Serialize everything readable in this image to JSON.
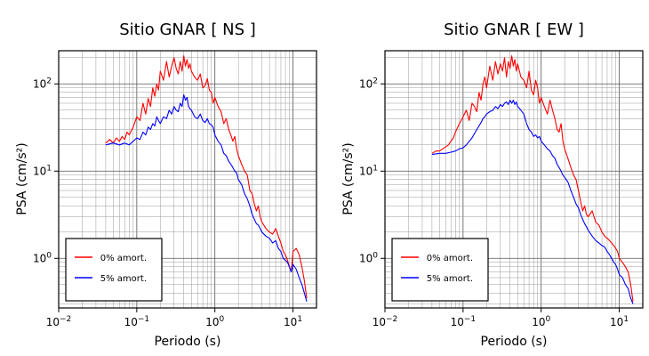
{
  "chart_data": [
    {
      "type": "line",
      "title": "Sitio GNAR [ NS ]",
      "xlabel": "Periodo (s)",
      "ylabel": "PSA (cm/s²)",
      "xscale": "log",
      "yscale": "log",
      "xlim": [
        0.01,
        20
      ],
      "ylim": [
        0.27,
        240
      ],
      "grid": true,
      "legend_placement": "bottom-left",
      "xticks": [
        {
          "value": 0.01,
          "base": "10",
          "exp": "−2"
        },
        {
          "value": 0.1,
          "base": "10",
          "exp": "−1"
        },
        {
          "value": 1,
          "base": "10",
          "exp": "0"
        },
        {
          "value": 10,
          "base": "10",
          "exp": "1"
        }
      ],
      "yticks": [
        {
          "value": 1,
          "base": "10",
          "exp": "0"
        },
        {
          "value": 10,
          "base": "10",
          "exp": "1"
        },
        {
          "value": 100,
          "base": "10",
          "exp": "2"
        }
      ],
      "series": [
        {
          "name": "0% amort.",
          "color": "#ff0000",
          "x": [
            0.04,
            0.045,
            0.05,
            0.055,
            0.06,
            0.065,
            0.07,
            0.075,
            0.08,
            0.09,
            0.1,
            0.11,
            0.12,
            0.13,
            0.14,
            0.15,
            0.16,
            0.17,
            0.18,
            0.19,
            0.2,
            0.22,
            0.24,
            0.26,
            0.28,
            0.3,
            0.32,
            0.34,
            0.36,
            0.38,
            0.4,
            0.42,
            0.44,
            0.46,
            0.48,
            0.5,
            0.55,
            0.6,
            0.65,
            0.7,
            0.75,
            0.8,
            0.85,
            0.9,
            0.95,
            1.0,
            1.1,
            1.2,
            1.3,
            1.4,
            1.5,
            1.6,
            1.7,
            1.8,
            1.9,
            2.0,
            2.2,
            2.4,
            2.6,
            2.8,
            3.0,
            3.2,
            3.4,
            3.6,
            3.8,
            4.0,
            4.5,
            5.0,
            5.5,
            6.0,
            6.5,
            7.0,
            7.5,
            8.0,
            8.5,
            9.0,
            9.5,
            10,
            11,
            12,
            13,
            14,
            15
          ],
          "y": [
            21,
            23,
            21,
            24,
            22,
            25,
            23,
            28,
            26,
            32,
            42,
            38,
            60,
            45,
            68,
            55,
            90,
            72,
            100,
            85,
            140,
            110,
            180,
            120,
            160,
            200,
            150,
            130,
            180,
            140,
            210,
            160,
            190,
            150,
            170,
            140,
            120,
            110,
            130,
            90,
            95,
            115,
            85,
            80,
            60,
            70,
            55,
            48,
            35,
            40,
            30,
            26,
            22,
            25,
            18,
            15,
            12,
            10,
            9,
            6,
            5.5,
            4.2,
            3.5,
            4.0,
            3.0,
            2.6,
            2.2,
            2.0,
            1.9,
            2.2,
            1.8,
            1.5,
            1.2,
            1.1,
            0.95,
            0.8,
            0.7,
            1.2,
            1.3,
            1.1,
            0.8,
            0.55,
            0.35
          ]
        },
        {
          "name": "5% amort.",
          "color": "#0000ff",
          "x": [
            0.04,
            0.05,
            0.06,
            0.07,
            0.08,
            0.09,
            0.1,
            0.11,
            0.12,
            0.13,
            0.14,
            0.15,
            0.16,
            0.17,
            0.18,
            0.19,
            0.2,
            0.22,
            0.24,
            0.26,
            0.28,
            0.3,
            0.32,
            0.34,
            0.36,
            0.38,
            0.4,
            0.42,
            0.44,
            0.46,
            0.48,
            0.5,
            0.55,
            0.6,
            0.65,
            0.7,
            0.75,
            0.8,
            0.85,
            0.9,
            0.95,
            1.0,
            1.1,
            1.2,
            1.3,
            1.4,
            1.5,
            1.6,
            1.7,
            1.8,
            1.9,
            2.0,
            2.2,
            2.4,
            2.6,
            2.8,
            3.0,
            3.2,
            3.4,
            3.6,
            3.8,
            4.0,
            4.5,
            5.0,
            5.5,
            6.0,
            6.5,
            7.0,
            7.5,
            8.0,
            8.5,
            9.0,
            9.5,
            10,
            11,
            12,
            13,
            14,
            15
          ],
          "y": [
            20,
            21,
            20,
            21,
            20,
            22,
            24,
            23,
            28,
            26,
            32,
            30,
            35,
            33,
            42,
            38,
            35,
            42,
            40,
            50,
            45,
            55,
            50,
            48,
            60,
            55,
            75,
            65,
            70,
            55,
            52,
            50,
            42,
            40,
            45,
            38,
            36,
            40,
            35,
            34,
            32,
            26,
            22,
            20,
            16,
            15,
            13,
            12,
            11,
            10,
            9.5,
            8,
            7,
            5.5,
            4.8,
            4.0,
            3.2,
            2.8,
            2.5,
            2.4,
            2.2,
            2.0,
            1.8,
            1.7,
            1.5,
            1.6,
            1.3,
            1.2,
            1.0,
            0.95,
            0.9,
            0.8,
            0.7,
            0.85,
            0.75,
            0.6,
            0.5,
            0.4,
            0.32
          ]
        }
      ]
    },
    {
      "type": "line",
      "title": "Sitio GNAR [ EW ]",
      "xlabel": "Periodo (s)",
      "ylabel": "PSA (cm/s²)",
      "xscale": "log",
      "yscale": "log",
      "xlim": [
        0.01,
        20
      ],
      "ylim": [
        0.27,
        240
      ],
      "grid": true,
      "legend_placement": "bottom-left",
      "xticks": [
        {
          "value": 0.01,
          "base": "10",
          "exp": "−2"
        },
        {
          "value": 0.1,
          "base": "10",
          "exp": "−1"
        },
        {
          "value": 1,
          "base": "10",
          "exp": "0"
        },
        {
          "value": 10,
          "base": "10",
          "exp": "1"
        }
      ],
      "yticks": [
        {
          "value": 1,
          "base": "10",
          "exp": "0"
        },
        {
          "value": 10,
          "base": "10",
          "exp": "1"
        },
        {
          "value": 100,
          "base": "10",
          "exp": "2"
        }
      ],
      "series": [
        {
          "name": "0% amort.",
          "color": "#ff0000",
          "x": [
            0.04,
            0.045,
            0.05,
            0.055,
            0.06,
            0.065,
            0.07,
            0.075,
            0.08,
            0.09,
            0.1,
            0.11,
            0.12,
            0.13,
            0.14,
            0.15,
            0.16,
            0.17,
            0.18,
            0.19,
            0.2,
            0.22,
            0.24,
            0.26,
            0.28,
            0.3,
            0.32,
            0.34,
            0.36,
            0.38,
            0.4,
            0.42,
            0.44,
            0.46,
            0.48,
            0.5,
            0.55,
            0.6,
            0.65,
            0.7,
            0.75,
            0.8,
            0.85,
            0.9,
            0.95,
            1.0,
            1.1,
            1.2,
            1.3,
            1.4,
            1.5,
            1.6,
            1.7,
            1.8,
            1.9,
            2.0,
            2.2,
            2.4,
            2.6,
            2.8,
            3.0,
            3.2,
            3.4,
            3.6,
            3.8,
            4.0,
            4.5,
            5.0,
            5.5,
            6.0,
            6.5,
            7.0,
            7.5,
            8.0,
            8.5,
            9.0,
            9.5,
            10,
            11,
            12,
            13,
            14,
            15
          ],
          "y": [
            16,
            17,
            17,
            18,
            19,
            20,
            22,
            24,
            28,
            35,
            42,
            50,
            38,
            60,
            55,
            48,
            80,
            65,
            100,
            120,
            90,
            160,
            110,
            180,
            130,
            170,
            140,
            200,
            120,
            180,
            150,
            210,
            160,
            190,
            140,
            170,
            120,
            110,
            90,
            140,
            85,
            75,
            110,
            90,
            60,
            70,
            55,
            45,
            65,
            50,
            40,
            30,
            28,
            35,
            22,
            18,
            14,
            11,
            9,
            8,
            6,
            4.5,
            3.5,
            4.0,
            3.2,
            3.0,
            3.5,
            2.6,
            2.4,
            2.0,
            1.8,
            1.7,
            1.6,
            1.5,
            1.4,
            1.3,
            1.2,
            1.0,
            0.9,
            0.8,
            0.7,
            0.5,
            0.32
          ]
        },
        {
          "name": "5% amort.",
          "color": "#0000ff",
          "x": [
            0.04,
            0.05,
            0.06,
            0.07,
            0.08,
            0.09,
            0.1,
            0.11,
            0.12,
            0.13,
            0.14,
            0.15,
            0.16,
            0.17,
            0.18,
            0.19,
            0.2,
            0.22,
            0.24,
            0.26,
            0.28,
            0.3,
            0.32,
            0.34,
            0.36,
            0.38,
            0.4,
            0.42,
            0.44,
            0.46,
            0.48,
            0.5,
            0.55,
            0.6,
            0.65,
            0.7,
            0.75,
            0.8,
            0.85,
            0.9,
            0.95,
            1.0,
            1.1,
            1.2,
            1.3,
            1.4,
            1.5,
            1.6,
            1.7,
            1.8,
            1.9,
            2.0,
            2.2,
            2.4,
            2.6,
            2.8,
            3.0,
            3.2,
            3.4,
            3.6,
            3.8,
            4.0,
            4.5,
            5.0,
            5.5,
            6.0,
            6.5,
            7.0,
            7.5,
            8.0,
            8.5,
            9.0,
            9.5,
            10,
            11,
            12,
            13,
            14,
            15
          ],
          "y": [
            15.5,
            16,
            16,
            16.5,
            17,
            18,
            18.5,
            20,
            22,
            24,
            27,
            30,
            33,
            36,
            40,
            42,
            45,
            48,
            50,
            55,
            52,
            58,
            55,
            60,
            62,
            58,
            65,
            60,
            65,
            58,
            62,
            55,
            50,
            45,
            35,
            30,
            28,
            25,
            26,
            24,
            25,
            22,
            20,
            18,
            17,
            15,
            14,
            12,
            11,
            10,
            9,
            8.5,
            7.5,
            6,
            5,
            4.2,
            3.8,
            3.2,
            2.8,
            2.5,
            2.3,
            2.1,
            1.8,
            1.6,
            1.5,
            1.4,
            1.35,
            1.2,
            1.1,
            1.0,
            0.9,
            0.85,
            0.75,
            0.65,
            0.6,
            0.5,
            0.45,
            0.35,
            0.3
          ]
        }
      ]
    }
  ]
}
